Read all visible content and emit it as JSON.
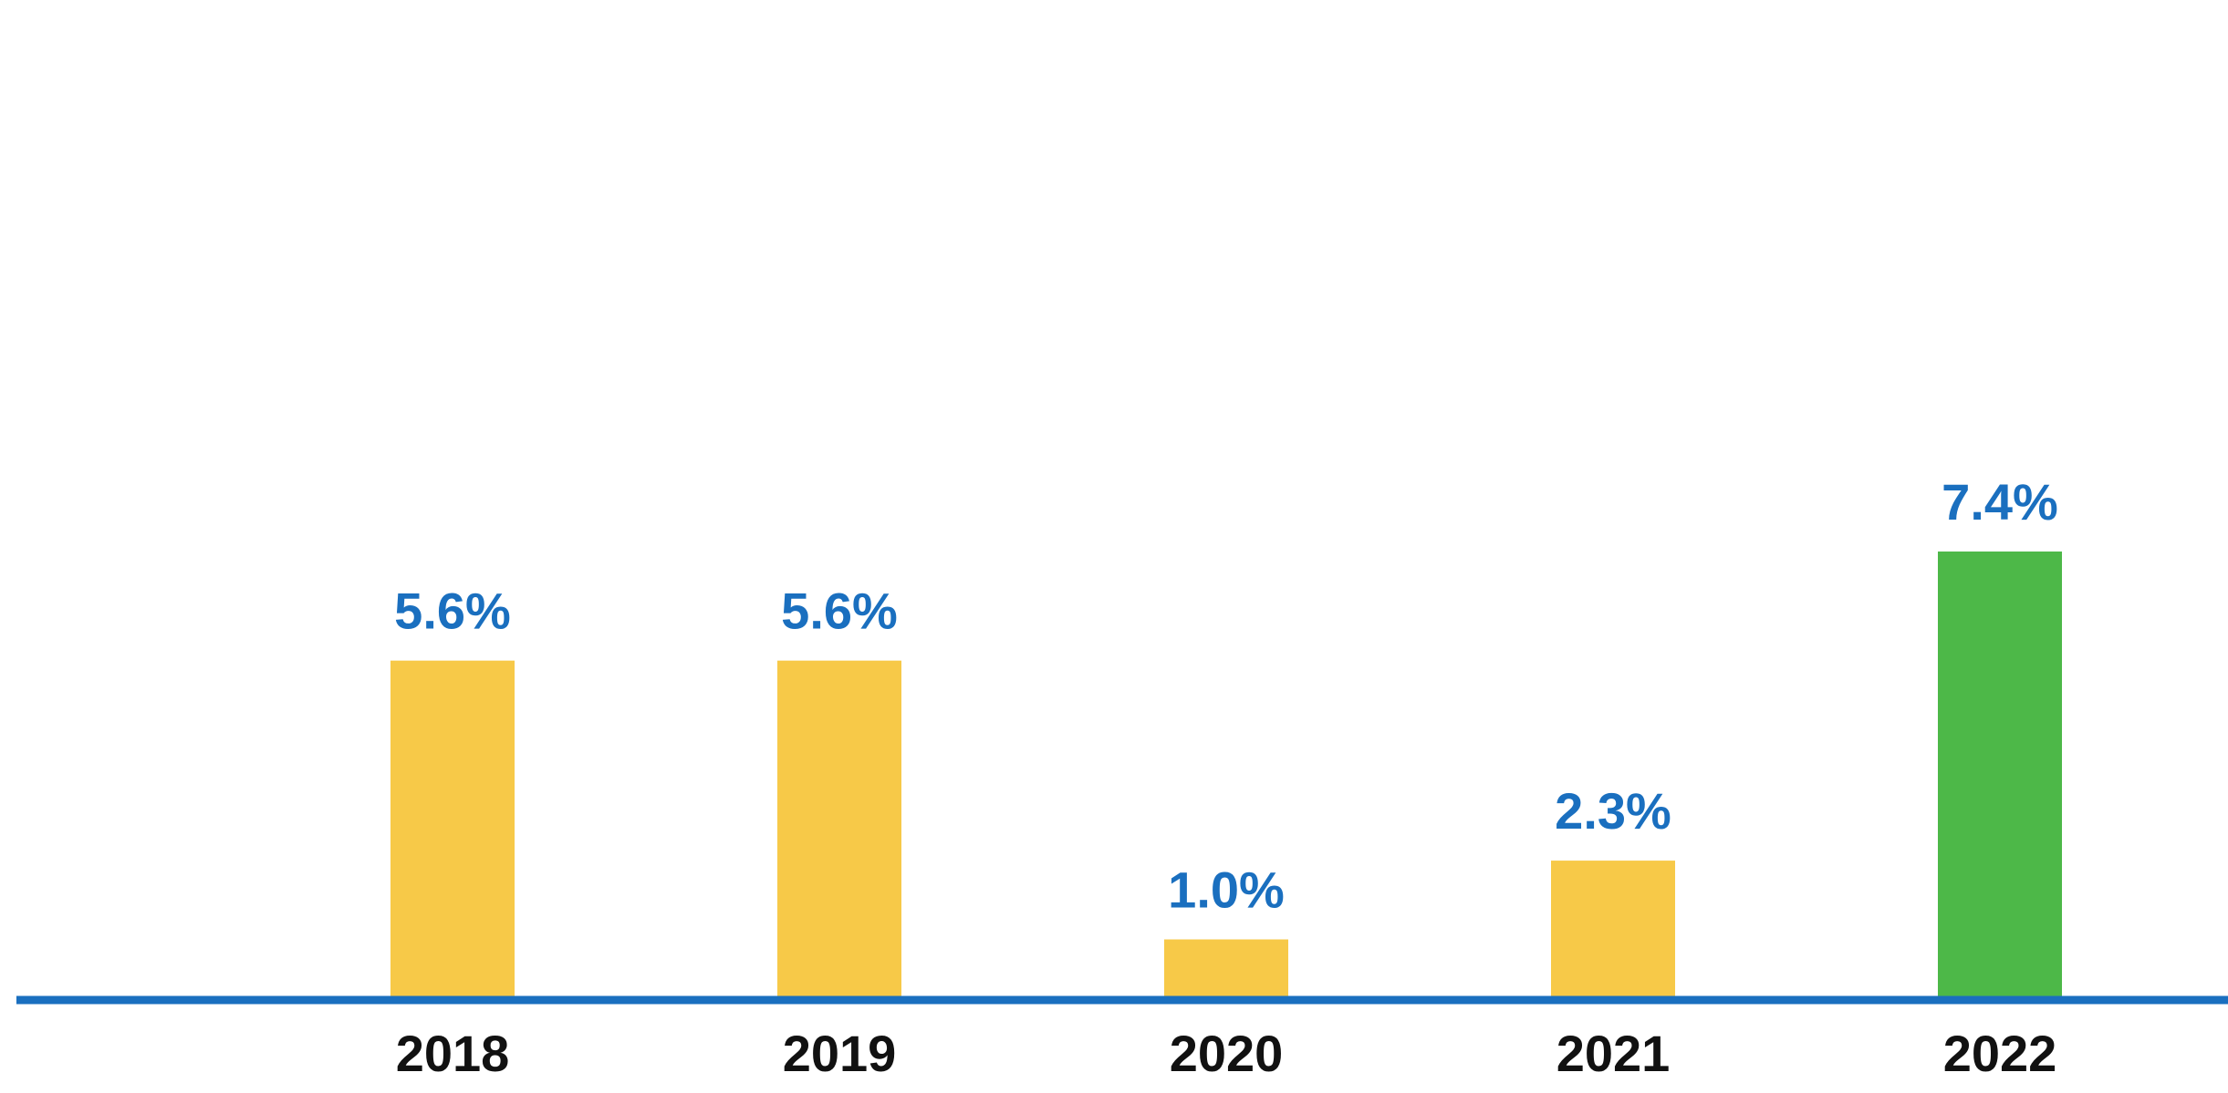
{
  "chart_data": {
    "type": "bar",
    "title": "",
    "xlabel": "",
    "ylabel": "",
    "categories": [
      "2018",
      "2019",
      "2020",
      "2021",
      "2022"
    ],
    "values": [
      5.6,
      5.6,
      1.0,
      2.3,
      7.4
    ],
    "value_labels": [
      "5.6%",
      "5.6%",
      "1.0%",
      "2.3%",
      "7.4%"
    ],
    "ylim": [
      0,
      10
    ],
    "grid": false,
    "legend": "none"
  },
  "colors": {
    "bar_default": "#F7C948",
    "bar_highlight": "#4DB848",
    "highlight_category": "2022",
    "axis_line": "#1A6FBF",
    "value_label": "#1A6FBF",
    "tick_label": "#111111",
    "background": "#FFFFFF"
  }
}
